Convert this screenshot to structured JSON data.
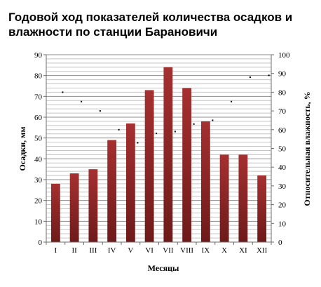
{
  "chart_data": {
    "type": "bar",
    "title": "Годовой ход показателей количества осадков и влажности по станции Барановичи",
    "xlabel": "Месяцы",
    "ylabel": "Осадки, мм",
    "y2label": "Относительная влажность, %",
    "categories": [
      "I",
      "II",
      "III",
      "IV",
      "V",
      "VI",
      "VII",
      "VIII",
      "IX",
      "X",
      "XI",
      "XII"
    ],
    "ylim": [
      0,
      90
    ],
    "yticks": [
      0,
      10,
      20,
      30,
      40,
      50,
      60,
      70,
      80,
      90
    ],
    "y2lim": [
      0,
      100
    ],
    "y2ticks": [
      0,
      10,
      20,
      30,
      40,
      50,
      60,
      70,
      80,
      90,
      100
    ],
    "grid": true,
    "series": [
      {
        "type": "bar",
        "axis": "left",
        "values": [
          28,
          33,
          35,
          49,
          57,
          73,
          84,
          74,
          58,
          42,
          42,
          32
        ],
        "color": "#8e2424"
      },
      {
        "type": "scatter",
        "axis": "right",
        "values": [
          80,
          75,
          70,
          60,
          53,
          58,
          59,
          63,
          65,
          75,
          88,
          89
        ],
        "color": "#000000"
      }
    ]
  }
}
